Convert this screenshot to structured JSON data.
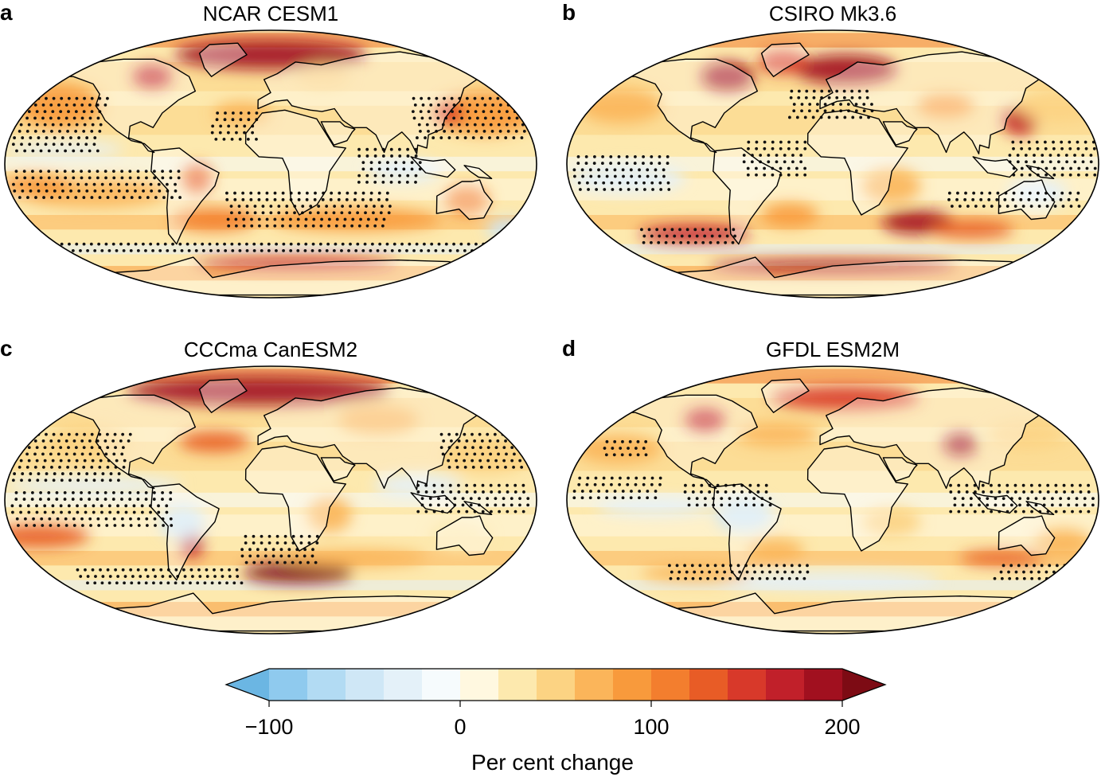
{
  "panels": [
    {
      "letter": "a",
      "title": "NCAR CESM1"
    },
    {
      "letter": "b",
      "title": "CSIRO Mk3.6"
    },
    {
      "letter": "c",
      "title": "CCCma CanESM2"
    },
    {
      "letter": "d",
      "title": "GFDL ESM2M"
    }
  ],
  "colorbar": {
    "label": "Per cent change",
    "ticks": [
      {
        "value": -100,
        "label": "−100"
      },
      {
        "value": 0,
        "label": "0"
      },
      {
        "value": 100,
        "label": "100"
      },
      {
        "value": 200,
        "label": "200"
      }
    ],
    "min": -100,
    "max": 200,
    "extend": "both",
    "colors": [
      "#6bb6e3",
      "#8fcaee",
      "#b2dbf3",
      "#cfe7f6",
      "#e4f1f9",
      "#f6fbfd",
      "#fff8e0",
      "#fde9ae",
      "#fcd383",
      "#fbb55a",
      "#f89a3c",
      "#f37e2e",
      "#e85c26",
      "#d8392a",
      "#c1202a",
      "#a1101f",
      "#7d0b14"
    ]
  }
}
